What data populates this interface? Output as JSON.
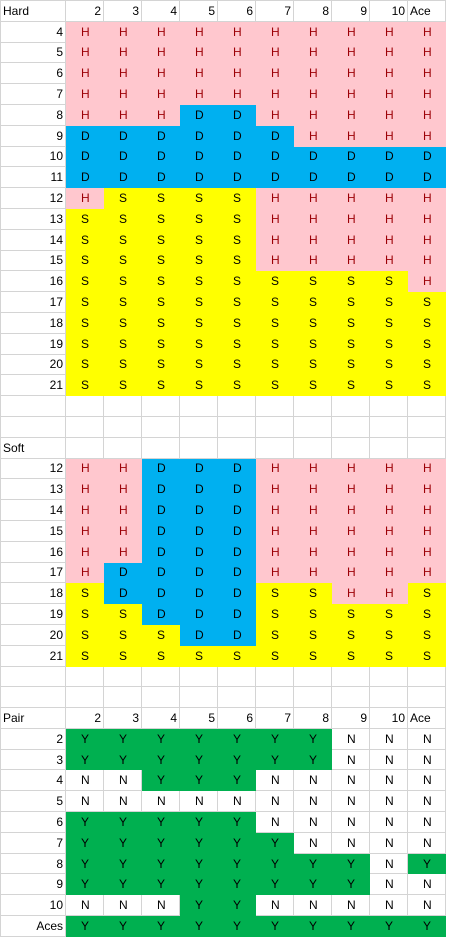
{
  "colors": {
    "H": "#ffc7ce",
    "D": "#00b0f0",
    "S": "#ffff00",
    "Y": "#00b050",
    "N": "#ffffff",
    "H_text": "#9c0006"
  },
  "dealer_columns": [
    "2",
    "3",
    "4",
    "5",
    "6",
    "7",
    "8",
    "9",
    "10",
    "Ace"
  ],
  "sections": [
    {
      "title": "Hard",
      "headers": [
        "2",
        "3",
        "4",
        "5",
        "6",
        "7",
        "8",
        "9",
        "10",
        "Ace"
      ],
      "rows": [
        {
          "label": "4",
          "cells": [
            "H",
            "H",
            "H",
            "H",
            "H",
            "H",
            "H",
            "H",
            "H",
            "H"
          ]
        },
        {
          "label": "5",
          "cells": [
            "H",
            "H",
            "H",
            "H",
            "H",
            "H",
            "H",
            "H",
            "H",
            "H"
          ]
        },
        {
          "label": "6",
          "cells": [
            "H",
            "H",
            "H",
            "H",
            "H",
            "H",
            "H",
            "H",
            "H",
            "H"
          ]
        },
        {
          "label": "7",
          "cells": [
            "H",
            "H",
            "H",
            "H",
            "H",
            "H",
            "H",
            "H",
            "H",
            "H"
          ]
        },
        {
          "label": "8",
          "cells": [
            "H",
            "H",
            "H",
            "D",
            "D",
            "H",
            "H",
            "H",
            "H",
            "H"
          ]
        },
        {
          "label": "9",
          "cells": [
            "D",
            "D",
            "D",
            "D",
            "D",
            "D",
            "H",
            "H",
            "H",
            "H"
          ]
        },
        {
          "label": "10",
          "cells": [
            "D",
            "D",
            "D",
            "D",
            "D",
            "D",
            "D",
            "D",
            "D",
            "D"
          ]
        },
        {
          "label": "11",
          "cells": [
            "D",
            "D",
            "D",
            "D",
            "D",
            "D",
            "D",
            "D",
            "D",
            "D"
          ]
        },
        {
          "label": "12",
          "cells": [
            "H",
            "S",
            "S",
            "S",
            "S",
            "H",
            "H",
            "H",
            "H",
            "H"
          ]
        },
        {
          "label": "13",
          "cells": [
            "S",
            "S",
            "S",
            "S",
            "S",
            "H",
            "H",
            "H",
            "H",
            "H"
          ]
        },
        {
          "label": "14",
          "cells": [
            "S",
            "S",
            "S",
            "S",
            "S",
            "H",
            "H",
            "H",
            "H",
            "H"
          ]
        },
        {
          "label": "15",
          "cells": [
            "S",
            "S",
            "S",
            "S",
            "S",
            "H",
            "H",
            "H",
            "H",
            "H"
          ]
        },
        {
          "label": "16",
          "cells": [
            "S",
            "S",
            "S",
            "S",
            "S",
            "S",
            "S",
            "S",
            "S",
            "H"
          ]
        },
        {
          "label": "17",
          "cells": [
            "S",
            "S",
            "S",
            "S",
            "S",
            "S",
            "S",
            "S",
            "S",
            "S"
          ]
        },
        {
          "label": "18",
          "cells": [
            "S",
            "S",
            "S",
            "S",
            "S",
            "S",
            "S",
            "S",
            "S",
            "S"
          ]
        },
        {
          "label": "19",
          "cells": [
            "S",
            "S",
            "S",
            "S",
            "S",
            "S",
            "S",
            "S",
            "S",
            "S"
          ]
        },
        {
          "label": "20",
          "cells": [
            "S",
            "S",
            "S",
            "S",
            "S",
            "S",
            "S",
            "S",
            "S",
            "S"
          ]
        },
        {
          "label": "21",
          "cells": [
            "S",
            "S",
            "S",
            "S",
            "S",
            "S",
            "S",
            "S",
            "S",
            "S"
          ]
        }
      ]
    },
    {
      "title": "Soft",
      "headers": null,
      "rows": [
        {
          "label": "12",
          "cells": [
            "H",
            "H",
            "D",
            "D",
            "D",
            "H",
            "H",
            "H",
            "H",
            "H"
          ]
        },
        {
          "label": "13",
          "cells": [
            "H",
            "H",
            "D",
            "D",
            "D",
            "H",
            "H",
            "H",
            "H",
            "H"
          ]
        },
        {
          "label": "14",
          "cells": [
            "H",
            "H",
            "D",
            "D",
            "D",
            "H",
            "H",
            "H",
            "H",
            "H"
          ]
        },
        {
          "label": "15",
          "cells": [
            "H",
            "H",
            "D",
            "D",
            "D",
            "H",
            "H",
            "H",
            "H",
            "H"
          ]
        },
        {
          "label": "16",
          "cells": [
            "H",
            "H",
            "D",
            "D",
            "D",
            "H",
            "H",
            "H",
            "H",
            "H"
          ]
        },
        {
          "label": "17",
          "cells": [
            "H",
            "D",
            "D",
            "D",
            "D",
            "H",
            "H",
            "H",
            "H",
            "H"
          ]
        },
        {
          "label": "18",
          "cells": [
            "S",
            "D",
            "D",
            "D",
            "D",
            "S",
            "S",
            "H",
            "H",
            "S"
          ]
        },
        {
          "label": "19",
          "cells": [
            "S",
            "S",
            "D",
            "D",
            "D",
            "S",
            "S",
            "S",
            "S",
            "S"
          ]
        },
        {
          "label": "20",
          "cells": [
            "S",
            "S",
            "S",
            "D",
            "D",
            "S",
            "S",
            "S",
            "S",
            "S"
          ]
        },
        {
          "label": "21",
          "cells": [
            "S",
            "S",
            "S",
            "S",
            "S",
            "S",
            "S",
            "S",
            "S",
            "S"
          ]
        }
      ]
    },
    {
      "title": "Pair",
      "headers": [
        "2",
        "3",
        "4",
        "5",
        "6",
        "7",
        "8",
        "9",
        "10",
        "Ace"
      ],
      "rows": [
        {
          "label": "2",
          "cells": [
            "Y",
            "Y",
            "Y",
            "Y",
            "Y",
            "Y",
            "Y",
            "N",
            "N",
            "N"
          ]
        },
        {
          "label": "3",
          "cells": [
            "Y",
            "Y",
            "Y",
            "Y",
            "Y",
            "Y",
            "Y",
            "N",
            "N",
            "N"
          ]
        },
        {
          "label": "4",
          "cells": [
            "N",
            "N",
            "Y",
            "Y",
            "Y",
            "N",
            "N",
            "N",
            "N",
            "N"
          ]
        },
        {
          "label": "5",
          "cells": [
            "N",
            "N",
            "N",
            "N",
            "N",
            "N",
            "N",
            "N",
            "N",
            "N"
          ]
        },
        {
          "label": "6",
          "cells": [
            "Y",
            "Y",
            "Y",
            "Y",
            "Y",
            "N",
            "N",
            "N",
            "N",
            "N"
          ]
        },
        {
          "label": "7",
          "cells": [
            "Y",
            "Y",
            "Y",
            "Y",
            "Y",
            "Y",
            "N",
            "N",
            "N",
            "N"
          ]
        },
        {
          "label": "8",
          "cells": [
            "Y",
            "Y",
            "Y",
            "Y",
            "Y",
            "Y",
            "Y",
            "Y",
            "N",
            "Y"
          ]
        },
        {
          "label": "9",
          "cells": [
            "Y",
            "Y",
            "Y",
            "Y",
            "Y",
            "Y",
            "Y",
            "Y",
            "N",
            "N"
          ]
        },
        {
          "label": "10",
          "cells": [
            "N",
            "N",
            "N",
            "Y",
            "Y",
            "N",
            "N",
            "N",
            "N",
            "N"
          ]
        },
        {
          "label": "Aces",
          "cells": [
            "Y",
            "Y",
            "Y",
            "Y",
            "Y",
            "Y",
            "Y",
            "Y",
            "Y",
            "Y"
          ]
        }
      ]
    }
  ]
}
